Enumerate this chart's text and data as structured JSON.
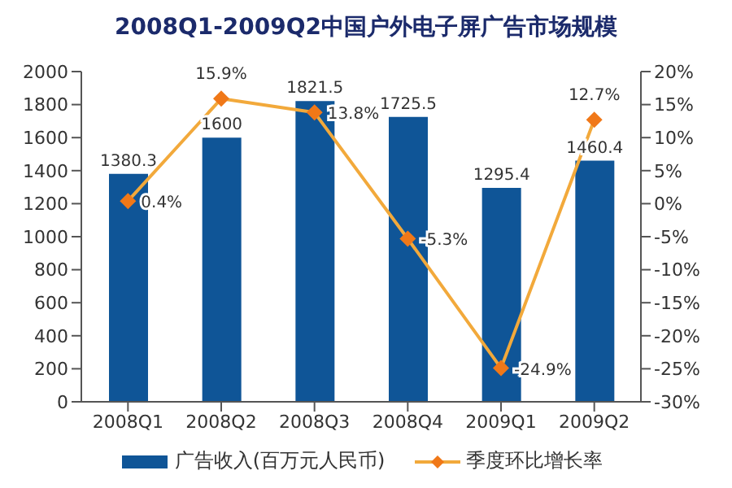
{
  "chart_data": {
    "type": "bar",
    "title": "2008Q1-2009Q2中国户外电子屏广告市场规模",
    "categories": [
      "2008Q1",
      "2008Q2",
      "2008Q3",
      "2008Q4",
      "2009Q1",
      "2009Q2"
    ],
    "series": [
      {
        "name": "广告收入(百万元人民币)",
        "color": "#0f5597",
        "values": [
          1380.3,
          1600,
          1821.5,
          1725.5,
          1295.4,
          1460.4
        ],
        "value_labels": [
          "1380.3",
          "1600",
          "1821.5",
          "1725.5",
          "1295.4",
          "1460.4"
        ]
      },
      {
        "name": "季度环比增长率",
        "type": "line",
        "axis": "y2",
        "color": "#f2a93b",
        "values": [
          0.4,
          15.9,
          13.8,
          -5.3,
          -24.9,
          12.7
        ],
        "value_labels": [
          "0.4%",
          "15.9%",
          "13.8%",
          "-5.3%",
          "-24.9%",
          "12.7%"
        ]
      }
    ],
    "ylim": [
      0,
      2000
    ],
    "yticks": [
      0,
      200,
      400,
      600,
      800,
      1000,
      1200,
      1400,
      1600,
      1800,
      2000
    ],
    "y2lim": [
      -30,
      20
    ],
    "y2ticks": [
      {
        "value": -30,
        "label": "-30%"
      },
      {
        "value": -25,
        "label": "-25%"
      },
      {
        "value": -20,
        "label": "-20%"
      },
      {
        "value": -15,
        "label": "-15%"
      },
      {
        "value": -10,
        "label": "-10%"
      },
      {
        "value": -5,
        "label": "-5%"
      },
      {
        "value": 0,
        "label": "0%"
      },
      {
        "value": 5,
        "label": "5%"
      },
      {
        "value": 10,
        "label": "10%"
      },
      {
        "value": 15,
        "label": "15%"
      },
      {
        "value": 20,
        "label": "20%"
      }
    ],
    "legend": "bottom",
    "marker": "diamond",
    "grid": false
  }
}
